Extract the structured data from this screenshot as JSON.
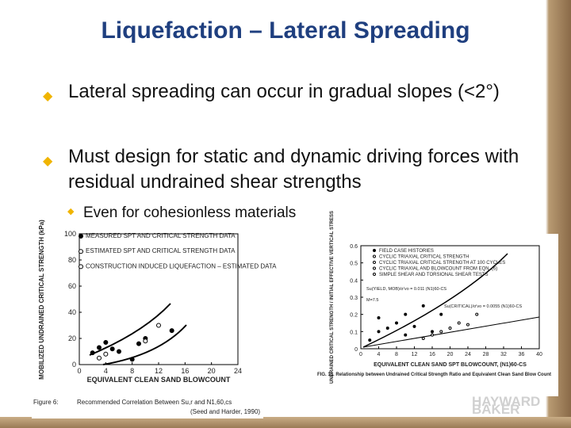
{
  "header": {
    "title": "Liquefaction – Lateral Spreading"
  },
  "bullets": [
    {
      "text": "Lateral spreading can occur in gradual slopes (<2°)"
    },
    {
      "text": "Must design for static and dynamic driving forces with residual undrained shear strengths",
      "sub": [
        "Even for cohesionless materials"
      ]
    }
  ],
  "figures": [
    {
      "ylabel": "MOBILIZED UNDRAINED CRITICAL STRENGTH (kPa)",
      "xlabel": "EQUIVALENT CLEAN SAND BLOWCOUNT",
      "xlim": [
        0,
        24
      ],
      "ylim": [
        0,
        100
      ],
      "xticks": [
        0,
        4,
        8,
        12,
        16,
        20,
        24
      ],
      "yticks": [
        0,
        20,
        40,
        60,
        80,
        100
      ],
      "legend": [
        "MEASURED SPT AND CRITICAL STRENGTH DATA",
        "ESTIMATED SPT AND CRITICAL STRENGTH DATA",
        "CONSTRUCTION INDUCED LIQUEFACTION – ESTIMATED DATA"
      ],
      "series": [
        {
          "name": "measured",
          "x": [
            2,
            3,
            4,
            5,
            6,
            9,
            10,
            14,
            8
          ],
          "y": [
            9,
            13,
            17,
            12,
            10,
            16,
            20,
            26,
            4
          ]
        },
        {
          "name": "estimated",
          "x": [
            3,
            10,
            12,
            4
          ],
          "y": [
            5,
            18,
            30,
            8
          ]
        }
      ],
      "caption_label": "Figure 6:",
      "caption": "Recommended Correlation Between Su,r and N1,60,cs",
      "source": "(Seed and Harder, 1990)"
    },
    {
      "ylabel": "UNDRAINED CRITICAL STRENGTH / INITIAL EFFECTIVE VERTICAL STRESS",
      "xlabel": "EQUIVALENT CLEAN SAND SPT BLOWCOUNT, (N1)60-CS",
      "xlim": [
        0,
        40
      ],
      "ylim": [
        0,
        0.6
      ],
      "xticks": [
        0,
        4,
        8,
        12,
        16,
        20,
        24,
        28,
        32,
        36,
        40
      ],
      "yticks": [
        0,
        0.1,
        0.2,
        0.3,
        0.4,
        0.5,
        0.6
      ],
      "legend": [
        "FIELD CASE HISTORIES",
        "CYCLIC TRIAXIAL CRITICAL STRENGTH",
        "CYCLIC TRIAXIAL CRITICAL STRENGTH AT 100 CYCLES",
        "CYCLIC TRIAXIAL AND BLOWCOUNT FROM EQN. (6)",
        "SIMPLE SHEAR AND TORSIONAL SHEAR TESTS"
      ],
      "annotations": [
        "Su(YIELD, MOB)/σ'vo = 0.011 (N1)60-CS",
        "M=7.5",
        "Su(CRITICAL)/σ'vo = 0.0055 (N1)60-CS"
      ],
      "series": [
        {
          "name": "field",
          "x": [
            2,
            4,
            6,
            8,
            10,
            12,
            14,
            16,
            18,
            4,
            10
          ],
          "y": [
            0.05,
            0.1,
            0.12,
            0.15,
            0.08,
            0.13,
            0.25,
            0.1,
            0.2,
            0.18,
            0.2
          ]
        },
        {
          "name": "lab",
          "x": [
            14,
            16,
            18,
            20,
            22,
            24,
            26
          ],
          "y": [
            0.06,
            0.08,
            0.1,
            0.12,
            0.15,
            0.14,
            0.2
          ]
        }
      ],
      "caption": "FIG. 13.  Relationship between Undrained Critical Strength Ratio and Equivalent Clean Sand Blow Count"
    }
  ],
  "logo": {
    "line1": "HAYWARD",
    "line2": "BAKER"
  }
}
